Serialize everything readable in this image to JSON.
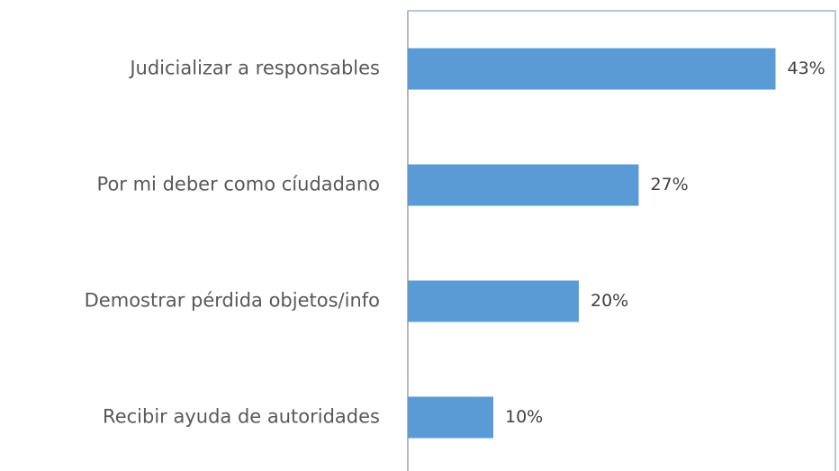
{
  "chart_data": {
    "type": "bar",
    "orientation": "horizontal",
    "categories": [
      "Judicializar a responsables",
      "Por mi  deber como cíudadano",
      "Demostrar pérdida objetos/info",
      "Recibir ayuda de autoridades"
    ],
    "values": [
      43,
      27,
      20,
      10
    ],
    "value_labels": [
      "43%",
      "27%",
      "20%",
      "10%"
    ],
    "color": "#5b9bd5",
    "xlim": [
      0,
      50
    ]
  }
}
